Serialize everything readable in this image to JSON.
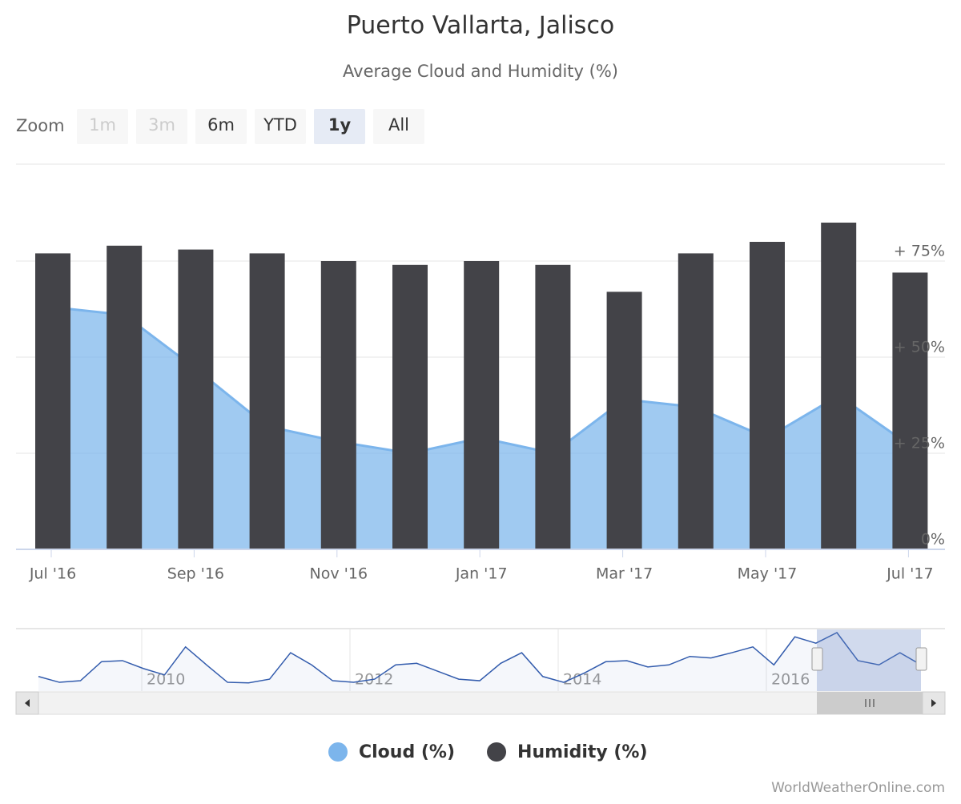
{
  "chart_data": {
    "type": "bar",
    "title": "Puerto Vallarta, Jalisco",
    "subtitle": "Average Cloud and Humidity (%)",
    "zoom": {
      "label": "Zoom",
      "buttons": [
        "1m",
        "3m",
        "6m",
        "YTD",
        "1y",
        "All"
      ],
      "disabled": [
        "1m",
        "3m"
      ],
      "selected": "1y"
    },
    "categories": [
      "Jul '16",
      null,
      "Sep '16",
      null,
      "Nov '16",
      null,
      "Jan '17",
      null,
      "Mar '17",
      null,
      "May '17",
      null,
      "Jul '17"
    ],
    "series": [
      {
        "name": "Cloud (%)",
        "type": "area",
        "color": "#7cb5ec",
        "values": [
          63,
          61,
          47,
          32,
          28,
          25,
          29,
          25,
          39,
          37,
          29,
          40,
          27
        ]
      },
      {
        "name": "Humidity (%)",
        "type": "bar",
        "color": "#434348",
        "values": [
          77,
          79,
          78,
          77,
          75,
          74,
          75,
          74,
          67,
          77,
          80,
          85,
          72
        ]
      }
    ],
    "ylim": [
      0,
      100
    ],
    "yticks": [
      {
        "value": 0,
        "label": "0%"
      },
      {
        "value": 25,
        "label": "+ 25%"
      },
      {
        "value": 50,
        "label": "+ 50%"
      },
      {
        "value": 75,
        "label": "+ 75%"
      }
    ],
    "grid": true,
    "legend": "bottom",
    "navigator": {
      "xticks": [
        "2010",
        "2012",
        "2014",
        "2016"
      ],
      "ylim": [
        0,
        100
      ],
      "values": [
        17,
        6,
        9,
        45,
        47,
        32,
        20,
        73,
        39,
        6,
        5,
        12,
        62,
        39,
        9,
        6,
        12,
        39,
        42,
        27,
        12,
        9,
        42,
        62,
        17,
        6,
        24,
        45,
        47,
        35,
        39,
        55,
        52,
        62,
        73,
        39,
        92,
        80,
        100,
        47,
        39,
        62,
        39
      ]
    },
    "credit": "WorldWeatherOnline.com"
  }
}
